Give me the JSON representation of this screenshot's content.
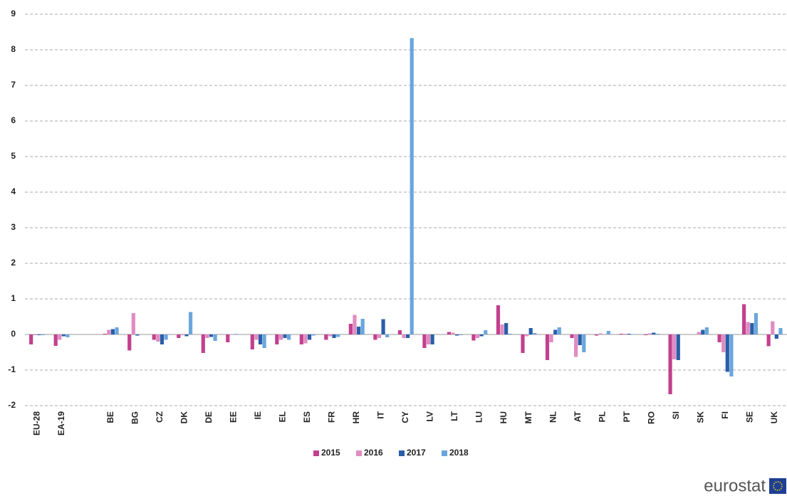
{
  "chart_data": {
    "type": "bar",
    "categories": [
      "EU-28",
      "EA-19",
      null,
      "BE",
      "BG",
      "CZ",
      "DK",
      "DE",
      "EE",
      "IE",
      "EL",
      "ES",
      "FR",
      "HR",
      "IT",
      "CY",
      "LV",
      "LT",
      "LU",
      "HU",
      "MT",
      "NL",
      "AT",
      "PL",
      "PT",
      "RO",
      "SI",
      "SK",
      "FI",
      "SE",
      "UK"
    ],
    "series": [
      {
        "name": "2015",
        "color": "#c2408e",
        "values": [
          -0.28,
          -0.32,
          null,
          0.02,
          -0.45,
          -0.15,
          -0.1,
          -0.52,
          -0.22,
          -0.42,
          -0.28,
          -0.28,
          -0.15,
          0.3,
          -0.15,
          0.12,
          -0.38,
          0.07,
          -0.17,
          0.82,
          -0.52,
          -0.72,
          -0.1,
          -0.03,
          0.02,
          -0.02,
          -1.68,
          0.0,
          -0.22,
          0.85,
          -0.33
        ]
      },
      {
        "name": "2016",
        "color": "#e08cc2",
        "values": [
          -0.02,
          -0.15,
          null,
          0.13,
          0.6,
          -0.2,
          -0.02,
          -0.1,
          0.0,
          -0.15,
          -0.15,
          -0.25,
          -0.05,
          0.55,
          -0.1,
          -0.1,
          -0.28,
          0.05,
          -0.1,
          0.28,
          -0.05,
          -0.22,
          -0.63,
          0.03,
          0.02,
          0.03,
          -0.7,
          0.07,
          -0.5,
          0.35,
          0.37
        ]
      },
      {
        "name": "2017",
        "color": "#2a5ea8",
        "values": [
          -0.02,
          -0.05,
          null,
          0.15,
          -0.03,
          -0.28,
          -0.05,
          -0.07,
          0.01,
          -0.28,
          -0.1,
          -0.15,
          -0.1,
          0.22,
          0.43,
          -0.1,
          -0.28,
          -0.03,
          -0.05,
          0.32,
          0.18,
          0.13,
          -0.3,
          0.0,
          0.02,
          0.05,
          -0.72,
          0.13,
          -1.05,
          0.32,
          -0.12
        ]
      },
      {
        "name": "2018",
        "color": "#6aa6dc",
        "values": [
          -0.02,
          -0.08,
          null,
          0.2,
          0.0,
          -0.15,
          0.63,
          -0.18,
          0.01,
          -0.38,
          -0.15,
          -0.03,
          -0.07,
          0.44,
          -0.08,
          8.33,
          0.0,
          -0.02,
          0.12,
          0.02,
          0.04,
          0.2,
          -0.5,
          0.1,
          0.01,
          0.02,
          0.0,
          0.2,
          -1.18,
          0.6,
          0.18
        ]
      }
    ],
    "ylim": [
      -2,
      9
    ],
    "yticks": [
      -2,
      -1,
      0,
      1,
      2,
      3,
      4,
      5,
      6,
      7,
      8,
      9
    ],
    "grid": true,
    "legend": "bottom",
    "source": "eurostat"
  }
}
